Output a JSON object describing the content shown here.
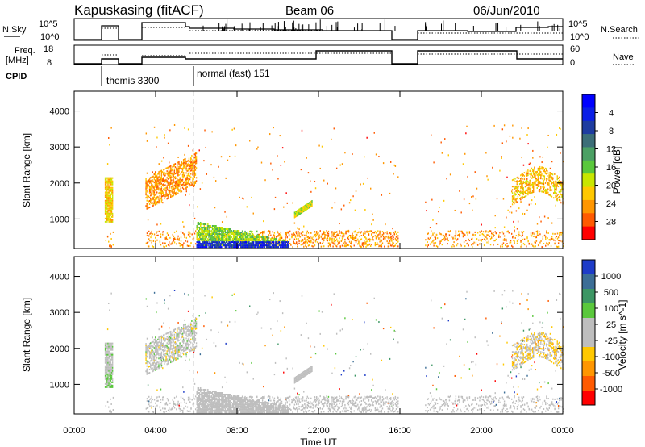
{
  "header": {
    "station": "Kapuskasing (fitACF)",
    "beam": "Beam 06",
    "date": "06/Jun/2010"
  },
  "top_panels": {
    "nsky_label": "N.Sky",
    "nsky_ticks": [
      "10^5",
      "10^0"
    ],
    "nsearch_label": "N.Search",
    "nsearch_ticks": [
      "10^5",
      "10^0"
    ],
    "freq_label_1": "Freq.",
    "freq_label_2": "[MHz]",
    "freq_ticks": [
      "18",
      "8"
    ],
    "nave_label": "Nave",
    "nave_ticks": [
      "60",
      "0"
    ],
    "cpid_label": "CPID",
    "cpid_modes": [
      {
        "label": "themis 3300",
        "at_hour": 1.5
      },
      {
        "label": "normal (fast) 151",
        "at_hour": 6.0
      }
    ]
  },
  "chart_data": [
    {
      "type": "heatmap",
      "title": "",
      "xlabel": "Time UT",
      "ylabel": "Slant Range [km]",
      "xlim": [
        0,
        24
      ],
      "ylim": [
        180,
        4550
      ],
      "x_ticks": [
        "00:00",
        "04:00",
        "08:00",
        "12:00",
        "16:00",
        "20:00",
        "00:00"
      ],
      "y_ticks": [
        "1000",
        "2000",
        "3000",
        "4000"
      ],
      "colorbar": {
        "label": "Power [dB]",
        "ticks": [
          "4",
          "8",
          "12",
          "16",
          "20",
          "24",
          "28"
        ],
        "range": [
          0,
          30
        ],
        "colors": [
          "#0000ff",
          "#0a1ee6",
          "#1e3ca0",
          "#3c6e78",
          "#4ba064",
          "#5ac83c",
          "#c8e600",
          "#ffc800",
          "#ff9600",
          "#ff5a00",
          "#ff0000"
        ]
      },
      "data_gaps_hours": [
        [
          0,
          1.5
        ],
        [
          1.9,
          3.5
        ],
        [
          15.9,
          17.2
        ]
      ]
    },
    {
      "type": "heatmap",
      "title": "",
      "xlabel": "Time UT",
      "ylabel": "Slant Range [km]",
      "xlim": [
        0,
        24
      ],
      "ylim": [
        180,
        4550
      ],
      "x_ticks": [
        "00:00",
        "04:00",
        "08:00",
        "12:00",
        "16:00",
        "20:00",
        "00:00"
      ],
      "y_ticks": [
        "1000",
        "2000",
        "3000",
        "4000"
      ],
      "colorbar": {
        "label": "Velocity [m s^-1]",
        "ticks": [
          "1000",
          "500",
          "100",
          "25",
          "-25",
          "-100",
          "-500",
          "-1000"
        ],
        "colors": [
          "#1e3cc8",
          "#3c6e96",
          "#3c9664",
          "#5ac83c",
          "#bebebe",
          "#bebebe",
          "#ffc800",
          "#ff9600",
          "#ff5a00",
          "#ff0000"
        ]
      },
      "data_gaps_hours": [
        [
          0,
          1.5
        ],
        [
          1.9,
          3.5
        ],
        [
          15.9,
          17.2
        ]
      ]
    }
  ],
  "colors": {
    "ground_scatter": "#bebebe",
    "axis": "#000000",
    "mode_change_line": "#c8c8c8"
  }
}
